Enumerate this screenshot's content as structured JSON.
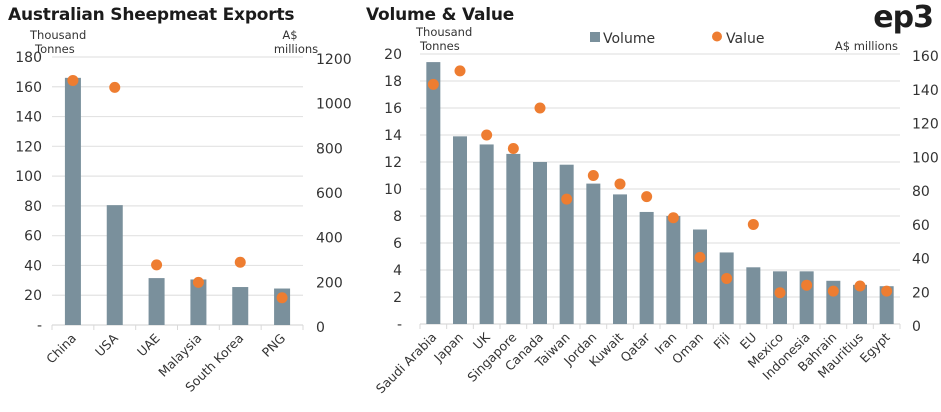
{
  "logo": "ep3",
  "colors": {
    "volume": "#7a909c",
    "value": "#ee7d31",
    "grid": "#e3e3e3"
  },
  "chart_data": [
    {
      "type": "bar",
      "title": "Australian Sheepmeat Exports",
      "ylabel": "Thousand Tonnes",
      "y2label": "A$ millions",
      "ylim": [
        0,
        180
      ],
      "y2lim": [
        0,
        1200
      ],
      "yticks": [
        "-",
        "20",
        "40",
        "60",
        "80",
        "100",
        "120",
        "140",
        "160",
        "180"
      ],
      "y2ticks": [
        "0",
        "200",
        "400",
        "600",
        "800",
        "1000",
        "1200"
      ],
      "grid": true,
      "categories": [
        "China",
        "USA",
        "UAE",
        "Malaysia",
        "South Korea",
        "PNG"
      ],
      "series": [
        {
          "name": "Volume",
          "type": "bar",
          "axis": "left",
          "values": [
            166,
            80.5,
            31.5,
            30.6,
            25.5,
            24.5
          ]
        },
        {
          "name": "Value",
          "type": "scatter",
          "axis": "right",
          "values": [
            1095,
            1064,
            269,
            191,
            281,
            122
          ]
        }
      ]
    },
    {
      "type": "bar",
      "title": "Volume & Value",
      "ylabel": "Thousand Tonnes",
      "y2label": "A$ millions",
      "ylim": [
        0,
        20
      ],
      "y2lim": [
        0,
        160
      ],
      "yticks": [
        "-",
        "2",
        "4",
        "6",
        "8",
        "10",
        "12",
        "14",
        "16",
        "18",
        "20"
      ],
      "y2ticks": [
        "0",
        "20",
        "40",
        "60",
        "80",
        "100",
        "120",
        "140",
        "160"
      ],
      "grid": true,
      "legend": {
        "position": "top",
        "entries": [
          "Volume",
          "Value"
        ]
      },
      "categories": [
        "Saudi Arabia",
        "Japan",
        "UK",
        "Singapore",
        "Canada",
        "Taiwan",
        "Jordan",
        "Kuwait",
        "Qatar",
        "Iran",
        "Oman",
        "Fiji",
        "EU",
        "Mexico",
        "Indonesia",
        "Bahrain",
        "Mauritius",
        "Egypt"
      ],
      "series": [
        {
          "name": "Volume",
          "type": "bar",
          "axis": "left",
          "values": [
            19.4,
            13.9,
            13.3,
            12.6,
            12.0,
            11.8,
            10.4,
            9.6,
            8.3,
            8.0,
            7.0,
            5.3,
            4.2,
            3.9,
            3.9,
            3.2,
            2.9,
            2.8
          ]
        },
        {
          "name": "Value",
          "type": "scatter",
          "axis": "right",
          "values": [
            142,
            150,
            112,
            104,
            128,
            74,
            88,
            83,
            75.5,
            63,
            39.5,
            27,
            59,
            18.5,
            23,
            19.5,
            22.5,
            19.5
          ]
        }
      ]
    }
  ]
}
